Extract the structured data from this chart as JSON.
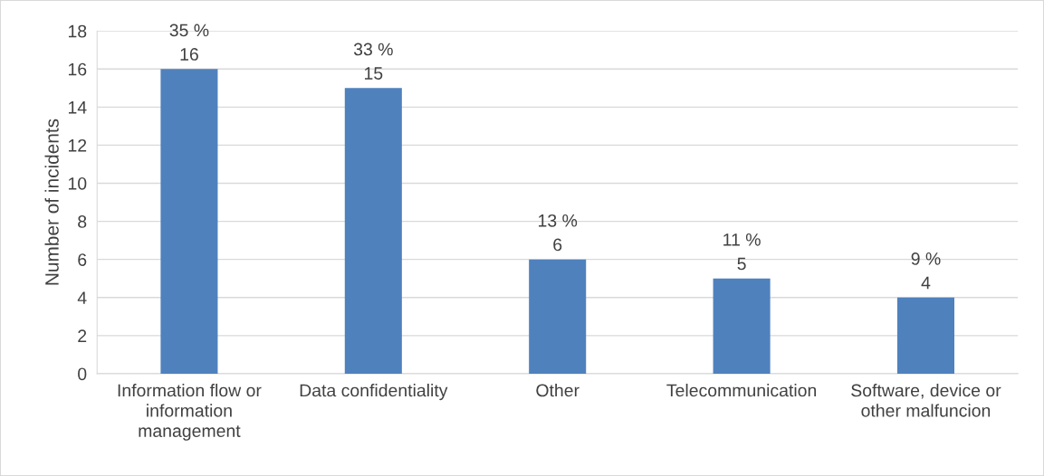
{
  "chart_data": {
    "type": "bar",
    "ylabel": "Number of incidents",
    "categories": [
      "Information flow or\ninformation\nmanagement",
      "Data confidentiality",
      "Other",
      "Telecommunication",
      "Software, device or\nother malfuncion"
    ],
    "values": [
      16,
      15,
      6,
      5,
      4
    ],
    "color": "#4f81bd",
    "value_labels": [
      "35 %\n16",
      "33 %\n15",
      "13 %\n6",
      "11 %\n5",
      "9 %\n4"
    ],
    "ylim": [
      0,
      18
    ],
    "yticks": [
      0,
      2,
      4,
      6,
      8,
      10,
      12,
      14,
      16,
      18
    ],
    "grid": "y",
    "legend": false
  }
}
